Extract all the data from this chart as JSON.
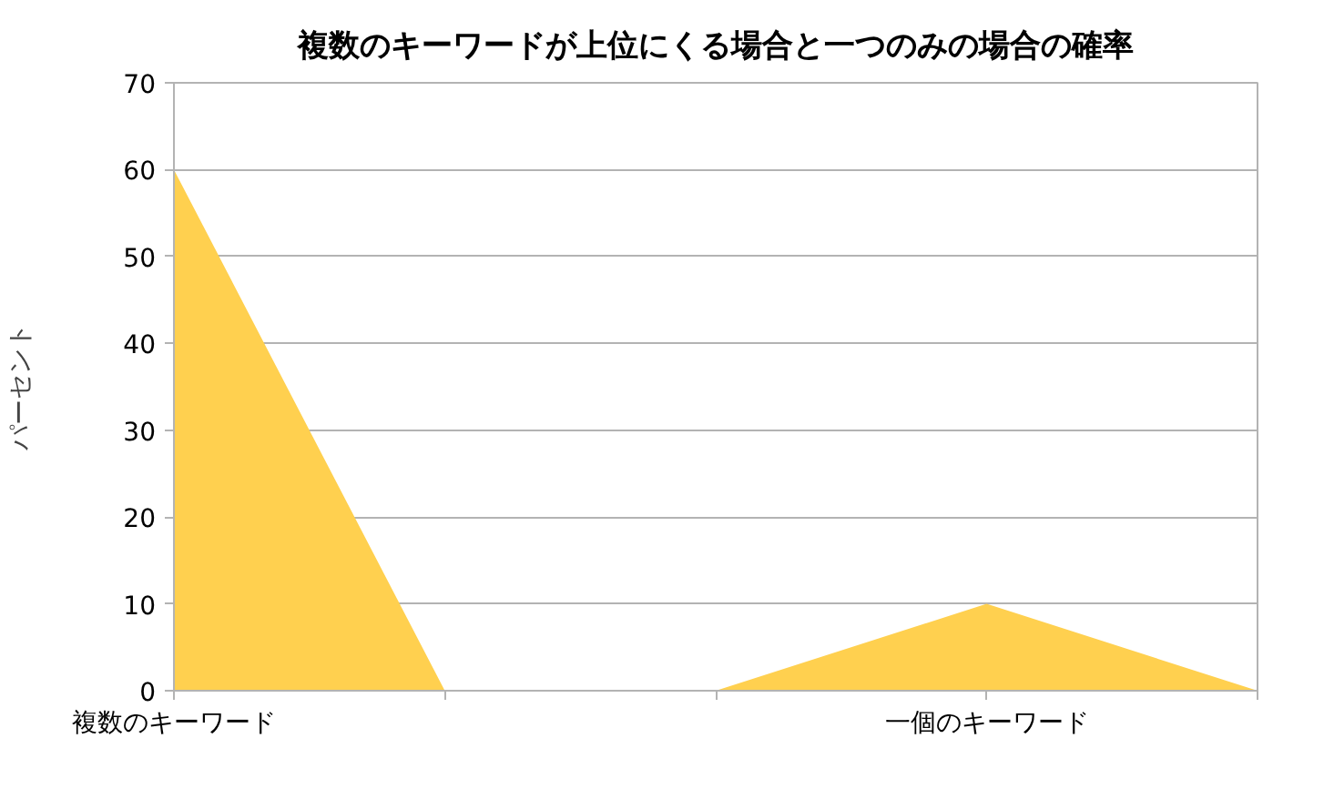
{
  "chart_data": {
    "type": "area",
    "title": "複数のキーワードが上位にくる場合と一つのみの場合の確率",
    "ylabel": "パーセント",
    "categories": [
      "複数のキーワード",
      null,
      null,
      "一個のキーワード",
      null
    ],
    "series": [
      {
        "color": "#ffd04f",
        "values": [
          60,
          0,
          0,
          10,
          0
        ]
      }
    ],
    "ylim": [
      0,
      70
    ],
    "yticks": [
      0,
      10,
      20,
      30,
      40,
      50,
      60,
      70
    ],
    "grid": "y"
  }
}
